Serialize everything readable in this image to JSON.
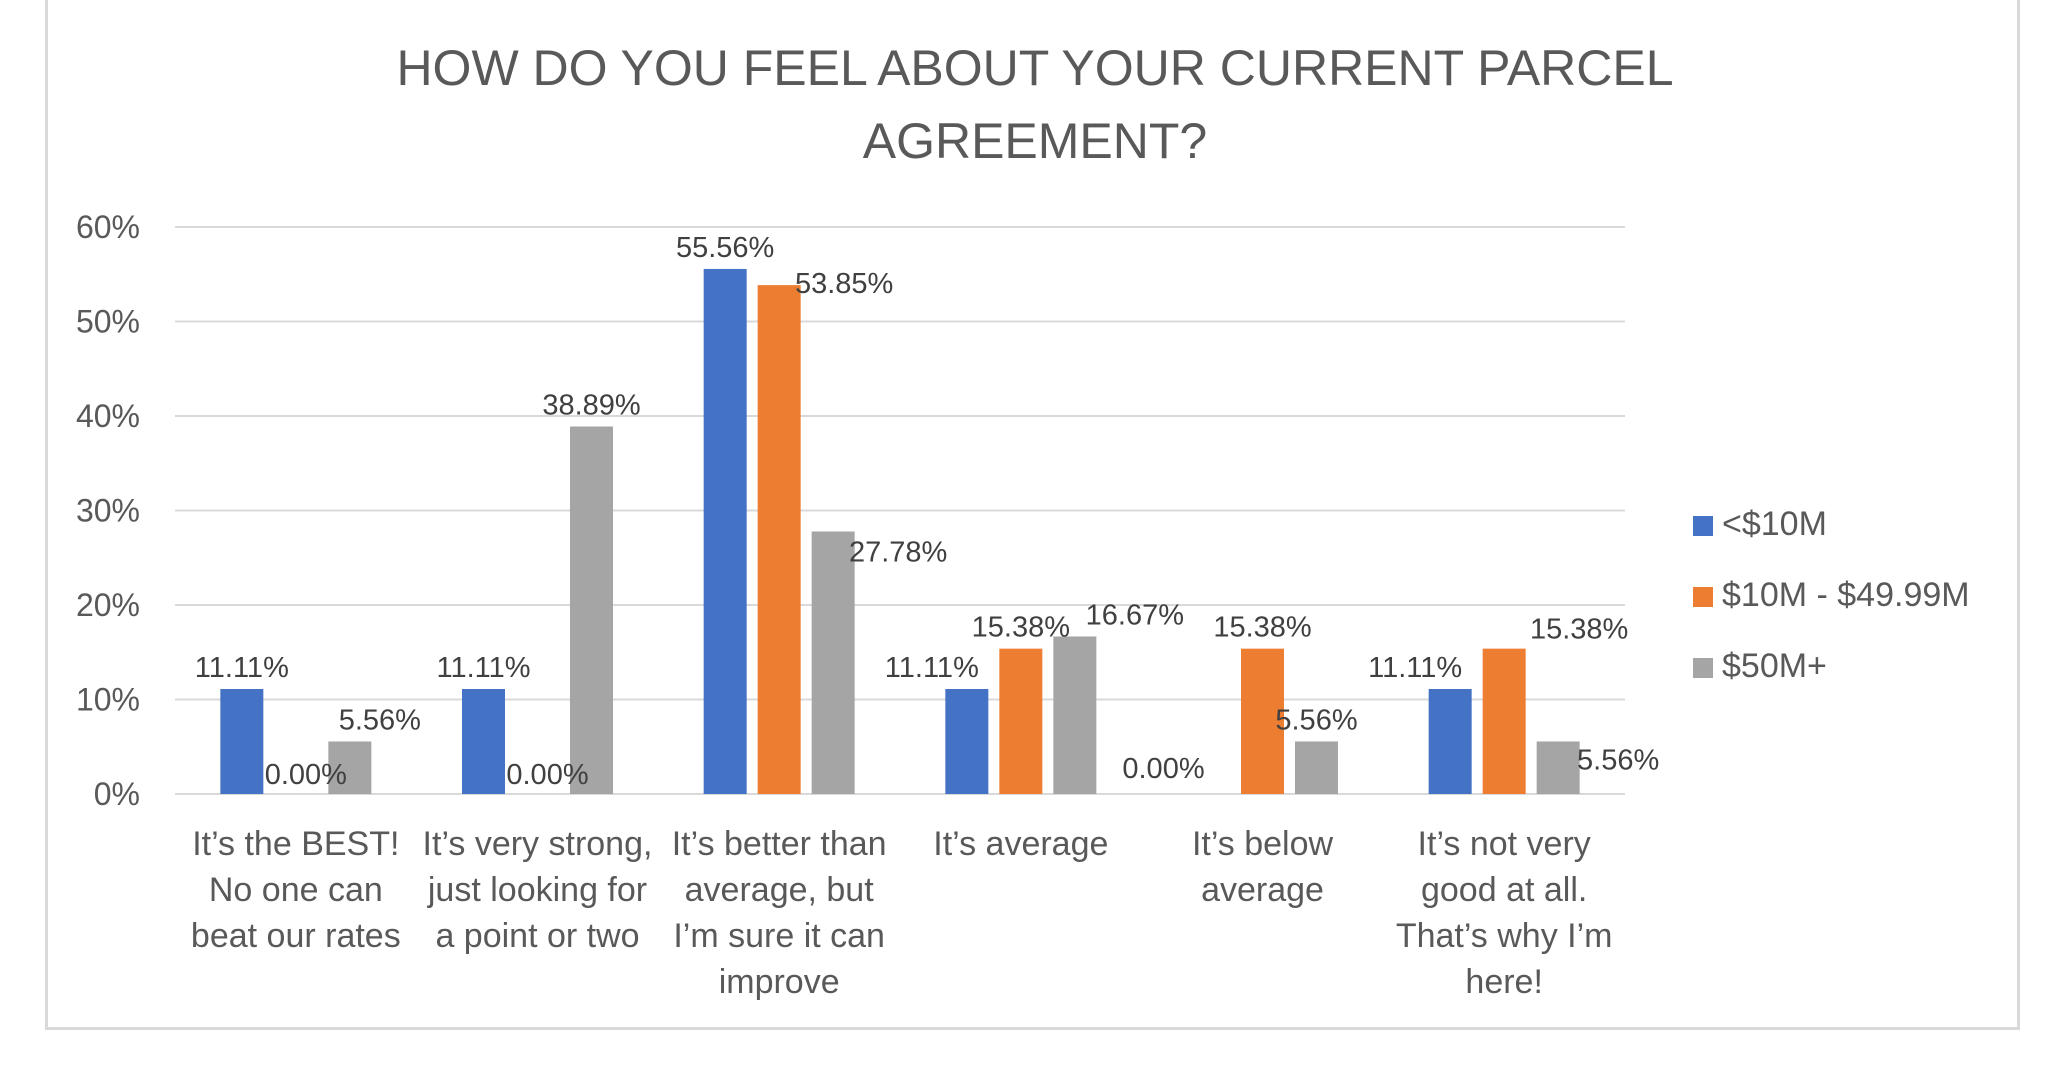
{
  "chart_data": {
    "type": "bar",
    "title": "HOW DO YOU FEEL ABOUT YOUR CURRENT PARCEL AGREEMENT?",
    "title_lines": [
      "HOW DO YOU FEEL ABOUT YOUR CURRENT PARCEL",
      "AGREEMENT?"
    ],
    "xlabel": "",
    "ylabel": "",
    "ylim": [
      0,
      0.6
    ],
    "y_ticks": [
      {
        "value": 0.0,
        "label": "0%"
      },
      {
        "value": 0.1,
        "label": "10%"
      },
      {
        "value": 0.2,
        "label": "20%"
      },
      {
        "value": 0.3,
        "label": "30%"
      },
      {
        "value": 0.4,
        "label": "40%"
      },
      {
        "value": 0.5,
        "label": "50%"
      },
      {
        "value": 0.6,
        "label": "60%"
      }
    ],
    "grid": true,
    "legend_position": "right",
    "categories": [
      "It’s the BEST! No one can beat our rates",
      "It’s very strong, just looking for a point or two",
      "It’s better than average, but I’m sure it can improve",
      "It’s average",
      "It’s below average",
      "It’s not very good at all. That’s why I’m here!"
    ],
    "category_lines": [
      [
        "It’s the BEST!",
        "No one can",
        "beat our rates"
      ],
      [
        "It’s very strong,",
        "just looking for",
        "a point or two"
      ],
      [
        "It’s better than",
        "average, but",
        "I’m sure it can",
        "improve"
      ],
      [
        "It’s average"
      ],
      [
        "It’s below",
        "average"
      ],
      [
        "It’s not very",
        "good at all.",
        "That’s why I’m",
        "here!"
      ]
    ],
    "series": [
      {
        "name": "<$10M",
        "color": "#4472c4",
        "values": [
          0.1111,
          0.1111,
          0.5556,
          0.1111,
          0.0,
          0.1111
        ],
        "labels": [
          "11.11%",
          "11.11%",
          "55.56%",
          "11.11%",
          "0.00%",
          "11.11%"
        ]
      },
      {
        "name": "$10M - $49.99M",
        "color": "#ed7d31",
        "values": [
          0.0,
          0.0,
          0.5385,
          0.1538,
          0.1538,
          0.1538
        ],
        "labels": [
          "0.00%",
          "0.00%",
          "53.85%",
          "15.38%",
          "15.38%",
          "15.38%"
        ]
      },
      {
        "name": "$50M+",
        "color": "#a5a5a5",
        "values": [
          0.0556,
          0.3889,
          0.2778,
          0.1667,
          0.0556,
          0.0556
        ],
        "labels": [
          "5.56%",
          "38.89%",
          "27.78%",
          "16.67%",
          "5.56%",
          "5.56%"
        ]
      }
    ]
  }
}
